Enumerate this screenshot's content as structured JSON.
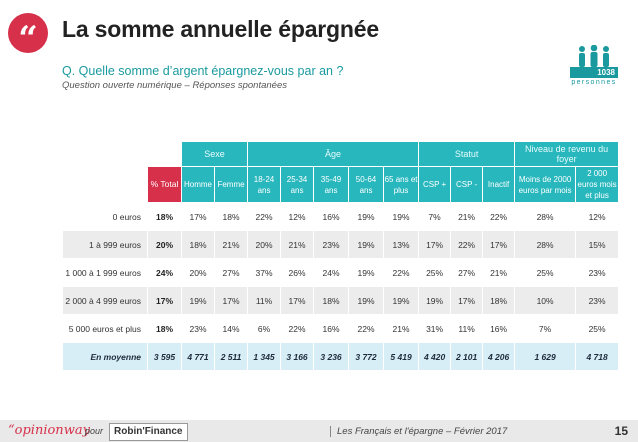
{
  "header": {
    "quote_mark": "“",
    "title": "La somme annuelle épargnée",
    "question": "Q. Quelle somme d’argent épargnez-vous par an ?",
    "subtitle": "Question ouverte numérique – Réponses spontanées",
    "sample_count": "1038",
    "sample_label": "personnes"
  },
  "table": {
    "groups": [
      "Sexe",
      "Âge",
      "Statut",
      "Niveau de revenu du foyer"
    ],
    "columns": [
      "% Total",
      "Homme",
      "Femme",
      "18-24 ans",
      "25-34 ans",
      "35-49 ans",
      "50-64 ans",
      "65 ans et plus",
      "CSP +",
      "CSP -",
      "Inactif",
      "Moins de 2000 euros par mois",
      "2 000 euros mois et plus"
    ],
    "rows": [
      {
        "label": "0 euros",
        "values": [
          "18%",
          "17%",
          "18%",
          "22%",
          "12%",
          "16%",
          "19%",
          "19%",
          "7%",
          "21%",
          "22%",
          "28%",
          "12%"
        ]
      },
      {
        "label": "1 à 999 euros",
        "values": [
          "20%",
          "18%",
          "21%",
          "20%",
          "21%",
          "23%",
          "19%",
          "13%",
          "17%",
          "22%",
          "17%",
          "28%",
          "15%"
        ]
      },
      {
        "label": "1 000 à 1 999 euros",
        "values": [
          "24%",
          "20%",
          "27%",
          "37%",
          "26%",
          "24%",
          "19%",
          "22%",
          "25%",
          "27%",
          "21%",
          "25%",
          "23%"
        ]
      },
      {
        "label": "2 000 à 4 999 euros",
        "values": [
          "17%",
          "19%",
          "17%",
          "11%",
          "17%",
          "18%",
          "19%",
          "19%",
          "19%",
          "17%",
          "18%",
          "10%",
          "23%"
        ]
      },
      {
        "label": "5 000 euros et plus",
        "values": [
          "18%",
          "23%",
          "14%",
          "6%",
          "22%",
          "16%",
          "22%",
          "21%",
          "31%",
          "11%",
          "16%",
          "7%",
          "25%"
        ]
      }
    ],
    "average": {
      "label": "En moyenne",
      "values": [
        "3 595",
        "4 771",
        "2 511",
        "1 345",
        "3 166",
        "3 236",
        "3 772",
        "5 419",
        "4 420",
        "2 101",
        "4 206",
        "1 629",
        "4 718"
      ]
    }
  },
  "footer": {
    "brand_a": "“opinion",
    "brand_b": "way",
    "pour": "pour",
    "partner": "Robin'Finance",
    "caption": "Les Français et l'épargne – Février 2017",
    "page": "15"
  },
  "colors": {
    "accent_red": "#d6304a",
    "teal": "#27b7bd",
    "avg_row": "#d8eef7"
  }
}
